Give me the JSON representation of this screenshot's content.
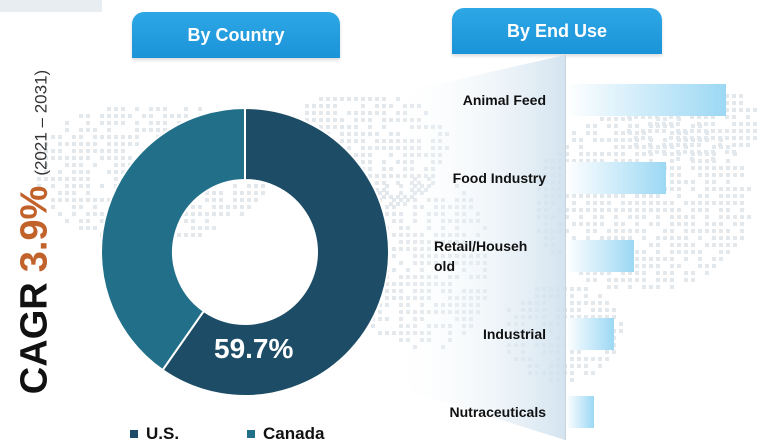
{
  "header": {
    "left_pill": "By Country",
    "right_pill": "By End Use"
  },
  "cagr": {
    "prefix": "CAGR",
    "value": "3.9%",
    "period": "(2021 – 2031)"
  },
  "colors": {
    "us": "#1d4d66",
    "canada": "#226f8a",
    "pill": "#1b93d8",
    "bar_end": "#9cd8f4",
    "cagr_value": "#c2622b"
  },
  "chart_data": [
    {
      "type": "pie",
      "title": "",
      "labels": [
        "U.S.",
        "Canada"
      ],
      "values": [
        59.7,
        40.3
      ],
      "data_labels": [
        "59.7%",
        ""
      ],
      "legend_placement": "bottom"
    },
    {
      "type": "bar",
      "orientation": "horizontal",
      "title": "",
      "categories": [
        "Animal Feed",
        "Food Industry",
        "Retail/Household",
        "Industrial",
        "Nutraceuticals"
      ],
      "category_display": [
        "Animal Feed",
        "Food Industry",
        "Retail/Househ\nold",
        "Industrial",
        "Nutraceuticals"
      ],
      "values": [
        160,
        100,
        68,
        48,
        28
      ],
      "xlabel": "",
      "ylabel": "",
      "grid": false
    }
  ]
}
